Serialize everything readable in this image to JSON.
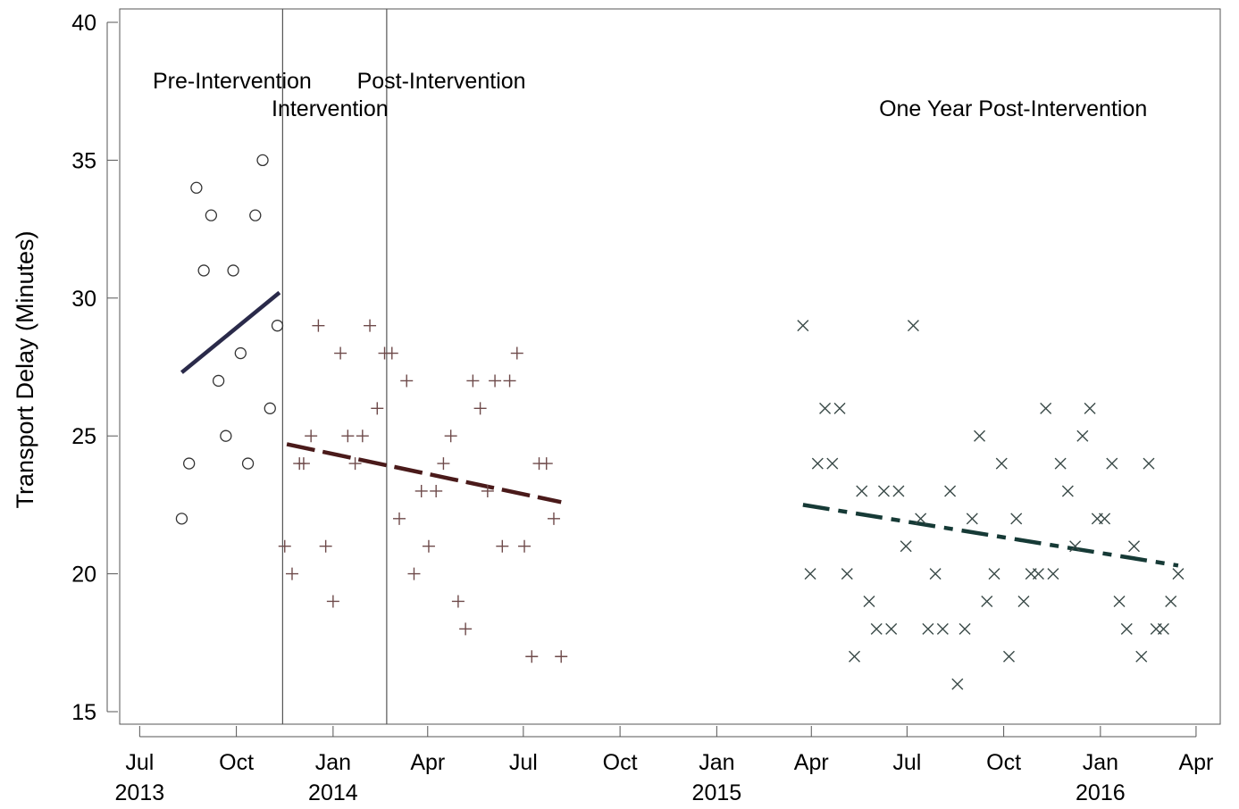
{
  "chart_data": {
    "type": "scatter",
    "title": "",
    "xlabel": "",
    "ylabel": "Transport Delay (Minutes)",
    "ylim": [
      15,
      40
    ],
    "xlim": [
      "2013-06-12",
      "2016-04-24"
    ],
    "y_ticks": [
      15,
      20,
      25,
      30,
      35,
      40
    ],
    "x_ticks": [
      {
        "date": "2013-07-01",
        "month": "Jul",
        "year": "2013"
      },
      {
        "date": "2013-10-01",
        "month": "Oct",
        "year": ""
      },
      {
        "date": "2014-01-01",
        "month": "Jan",
        "year": "2014"
      },
      {
        "date": "2014-04-01",
        "month": "Apr",
        "year": ""
      },
      {
        "date": "2014-07-01",
        "month": "Jul",
        "year": ""
      },
      {
        "date": "2014-10-01",
        "month": "Oct",
        "year": ""
      },
      {
        "date": "2015-01-01",
        "month": "Jan",
        "year": "2015"
      },
      {
        "date": "2015-04-01",
        "month": "Apr",
        "year": ""
      },
      {
        "date": "2015-07-01",
        "month": "Jul",
        "year": ""
      },
      {
        "date": "2015-10-01",
        "month": "Oct",
        "year": ""
      },
      {
        "date": "2016-01-01",
        "month": "Jan",
        "year": "2016"
      },
      {
        "date": "2016-04-01",
        "month": "Apr",
        "year": ""
      }
    ],
    "grid": false,
    "legend": "none",
    "phase_boundaries": [
      "2013-11-14",
      "2014-02-21"
    ],
    "annotations": [
      {
        "text": "Pre-Intervention",
        "date": "2013-09-27",
        "y": 37.6
      },
      {
        "text": "Intervention",
        "date": "2013-12-29",
        "y": 36.6
      },
      {
        "text": "Post-Intervention",
        "date": "2014-04-14",
        "y": 37.6
      },
      {
        "text": "One Year Post-Intervention",
        "date": "2015-10-10",
        "y": 36.6
      }
    ],
    "series": [
      {
        "marker": "circle",
        "color": "#333333",
        "points": [
          [
            "2013-08-10",
            22
          ],
          [
            "2013-08-17",
            24
          ],
          [
            "2013-08-24",
            34
          ],
          [
            "2013-08-31",
            31
          ],
          [
            "2013-09-07",
            33
          ],
          [
            "2013-09-14",
            27
          ],
          [
            "2013-09-21",
            25
          ],
          [
            "2013-09-28",
            31
          ],
          [
            "2013-10-05",
            28
          ],
          [
            "2013-10-12",
            24
          ],
          [
            "2013-10-19",
            33
          ],
          [
            "2013-10-26",
            35
          ],
          [
            "2013-11-02",
            26
          ],
          [
            "2013-11-09",
            29
          ]
        ],
        "trend": {
          "from": [
            "2013-08-10",
            27.3
          ],
          "to": [
            "2013-11-11",
            30.2
          ],
          "color": "#2a2a4a",
          "dash": "solid"
        }
      },
      {
        "marker": "plus",
        "color": "#6e4a4a",
        "points": [
          [
            "2013-11-16",
            21
          ],
          [
            "2013-11-23",
            20
          ],
          [
            "2013-11-30",
            24
          ],
          [
            "2013-12-04",
            24
          ],
          [
            "2013-12-11",
            25
          ],
          [
            "2013-12-18",
            29
          ],
          [
            "2013-12-25",
            21
          ],
          [
            "2014-01-01",
            19
          ],
          [
            "2014-01-08",
            28
          ],
          [
            "2014-01-15",
            25
          ],
          [
            "2014-01-22",
            24
          ],
          [
            "2014-01-29",
            25
          ],
          [
            "2014-02-05",
            29
          ],
          [
            "2014-02-12",
            26
          ],
          [
            "2014-02-19",
            28
          ],
          [
            "2014-02-26",
            28
          ],
          [
            "2014-03-05",
            22
          ],
          [
            "2014-03-12",
            27
          ],
          [
            "2014-03-19",
            20
          ],
          [
            "2014-03-26",
            23
          ],
          [
            "2014-04-02",
            21
          ],
          [
            "2014-04-09",
            23
          ],
          [
            "2014-04-16",
            24
          ],
          [
            "2014-04-23",
            25
          ],
          [
            "2014-04-30",
            19
          ],
          [
            "2014-05-07",
            18
          ],
          [
            "2014-05-14",
            27
          ],
          [
            "2014-05-21",
            26
          ],
          [
            "2014-05-28",
            23
          ],
          [
            "2014-06-04",
            27
          ],
          [
            "2014-06-11",
            21
          ],
          [
            "2014-06-18",
            27
          ],
          [
            "2014-06-25",
            28
          ],
          [
            "2014-07-02",
            21
          ],
          [
            "2014-07-09",
            17
          ],
          [
            "2014-07-16",
            24
          ],
          [
            "2014-07-23",
            24
          ],
          [
            "2014-07-30",
            22
          ],
          [
            "2014-08-06",
            17
          ]
        ],
        "trend": {
          "from": [
            "2013-11-18",
            24.7
          ],
          "to": [
            "2014-08-06",
            22.6
          ],
          "color": "#4a1a1a",
          "dash": "long"
        }
      },
      {
        "marker": "x",
        "color": "#3a4a48",
        "points": [
          [
            "2015-03-24",
            29
          ],
          [
            "2015-03-31",
            20
          ],
          [
            "2015-04-07",
            24
          ],
          [
            "2015-04-14",
            26
          ],
          [
            "2015-04-21",
            24
          ],
          [
            "2015-04-28",
            26
          ],
          [
            "2015-05-05",
            20
          ],
          [
            "2015-05-12",
            17
          ],
          [
            "2015-05-19",
            23
          ],
          [
            "2015-05-26",
            19
          ],
          [
            "2015-06-02",
            18
          ],
          [
            "2015-06-09",
            23
          ],
          [
            "2015-06-16",
            18
          ],
          [
            "2015-06-23",
            23
          ],
          [
            "2015-06-30",
            21
          ],
          [
            "2015-07-07",
            29
          ],
          [
            "2015-07-14",
            22
          ],
          [
            "2015-07-21",
            18
          ],
          [
            "2015-07-28",
            20
          ],
          [
            "2015-08-04",
            18
          ],
          [
            "2015-08-11",
            23
          ],
          [
            "2015-08-18",
            16
          ],
          [
            "2015-08-25",
            18
          ],
          [
            "2015-09-01",
            22
          ],
          [
            "2015-09-08",
            25
          ],
          [
            "2015-09-15",
            19
          ],
          [
            "2015-09-22",
            20
          ],
          [
            "2015-09-29",
            24
          ],
          [
            "2015-10-06",
            17
          ],
          [
            "2015-10-13",
            22
          ],
          [
            "2015-10-20",
            19
          ],
          [
            "2015-10-27",
            20
          ],
          [
            "2015-11-03",
            20
          ],
          [
            "2015-11-10",
            26
          ],
          [
            "2015-11-17",
            20
          ],
          [
            "2015-11-24",
            24
          ],
          [
            "2015-12-01",
            23
          ],
          [
            "2015-12-08",
            21
          ],
          [
            "2015-12-15",
            25
          ],
          [
            "2015-12-22",
            26
          ],
          [
            "2015-12-29",
            22
          ],
          [
            "2016-01-05",
            22
          ],
          [
            "2016-01-12",
            24
          ],
          [
            "2016-01-19",
            19
          ],
          [
            "2016-01-26",
            18
          ],
          [
            "2016-02-02",
            21
          ],
          [
            "2016-02-09",
            17
          ],
          [
            "2016-02-16",
            24
          ],
          [
            "2016-02-23",
            18
          ],
          [
            "2016-03-01",
            18
          ],
          [
            "2016-03-08",
            19
          ],
          [
            "2016-03-15",
            20
          ]
        ],
        "trend": {
          "from": [
            "2015-03-24",
            22.5
          ],
          "to": [
            "2016-03-15",
            20.3
          ],
          "color": "#163a36",
          "dash": "dashdot"
        }
      }
    ]
  }
}
